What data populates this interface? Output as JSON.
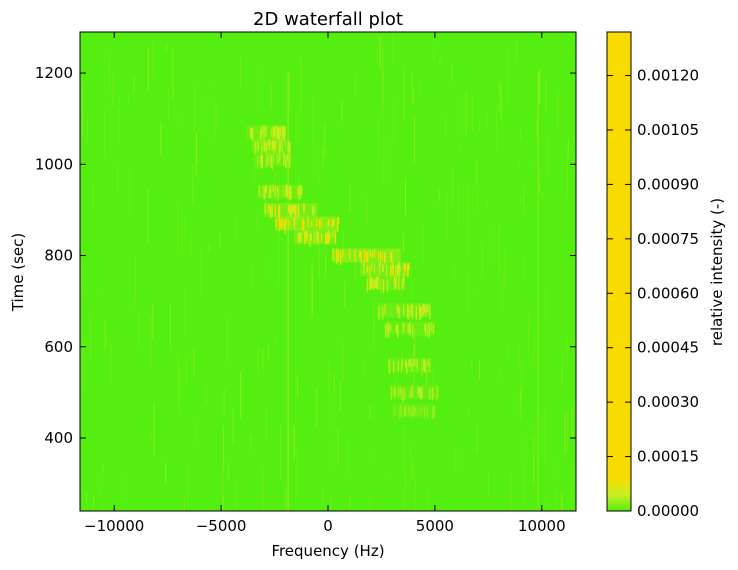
{
  "chart_data": {
    "type": "heatmap",
    "title": "2D waterfall plot",
    "xlabel": "Frequency (Hz)",
    "ylabel": "Time (sec)",
    "xlim": [
      -11600,
      11600
    ],
    "ylim": [
      240,
      1290
    ],
    "xticks": [
      -10000,
      -5000,
      0,
      5000,
      10000
    ],
    "xtick_labels": [
      "−10000",
      "−5000",
      "0",
      "5000",
      "10000"
    ],
    "yticks": [
      400,
      600,
      800,
      1000,
      1200
    ],
    "ytick_labels": [
      "400",
      "600",
      "800",
      "1000",
      "1200"
    ],
    "colorbar": {
      "label": "relative intensity (-)",
      "range": [
        0,
        0.00132
      ],
      "ticks": [
        0,
        0.00015,
        0.0003,
        0.00045,
        0.0006,
        0.00075,
        0.0009,
        0.00105,
        0.0012
      ],
      "tick_labels": [
        "0.00000",
        "0.00015",
        "0.00030",
        "0.00045",
        "0.00060",
        "0.00075",
        "0.00090",
        "0.00105",
        "0.00120"
      ],
      "color_low": "#55ee11",
      "color_mid": "#ccee22",
      "color_high": "#f8dc00"
    },
    "background_level": 1e-05,
    "signal_track": [
      {
        "time": 1070,
        "freq_from": -3800,
        "freq_to": -2000,
        "intensity": 4e-05
      },
      {
        "time": 1040,
        "freq_from": -3600,
        "freq_to": -1800,
        "intensity": 4e-05
      },
      {
        "time": 1010,
        "freq_from": -3400,
        "freq_to": -1700,
        "intensity": 3e-05
      },
      {
        "time": 940,
        "freq_from": -3300,
        "freq_to": -1200,
        "intensity": 4e-05
      },
      {
        "time": 900,
        "freq_from": -3000,
        "freq_to": -500,
        "intensity": 5e-05
      },
      {
        "time": 870,
        "freq_from": -2500,
        "freq_to": 500,
        "intensity": 7e-05
      },
      {
        "time": 840,
        "freq_from": -1600,
        "freq_to": 400,
        "intensity": 5e-05
      },
      {
        "time": 800,
        "freq_from": 200,
        "freq_to": 3400,
        "intensity": 7e-05
      },
      {
        "time": 770,
        "freq_from": 1500,
        "freq_to": 3800,
        "intensity": 5e-05
      },
      {
        "time": 740,
        "freq_from": 1800,
        "freq_to": 3600,
        "intensity": 4e-05
      },
      {
        "time": 680,
        "freq_from": 2300,
        "freq_to": 4800,
        "intensity": 4e-05
      },
      {
        "time": 640,
        "freq_from": 2600,
        "freq_to": 5000,
        "intensity": 3e-05
      },
      {
        "time": 560,
        "freq_from": 2800,
        "freq_to": 4800,
        "intensity": 3e-05
      },
      {
        "time": 500,
        "freq_from": 2900,
        "freq_to": 5200,
        "intensity": 3e-05
      },
      {
        "time": 460,
        "freq_from": 3000,
        "freq_to": 5000,
        "intensity": 2e-05
      }
    ],
    "persistent_lines": [
      {
        "freq": -1900,
        "intensity": 3e-05
      },
      {
        "freq": 9800,
        "intensity": 2e-05
      }
    ]
  }
}
